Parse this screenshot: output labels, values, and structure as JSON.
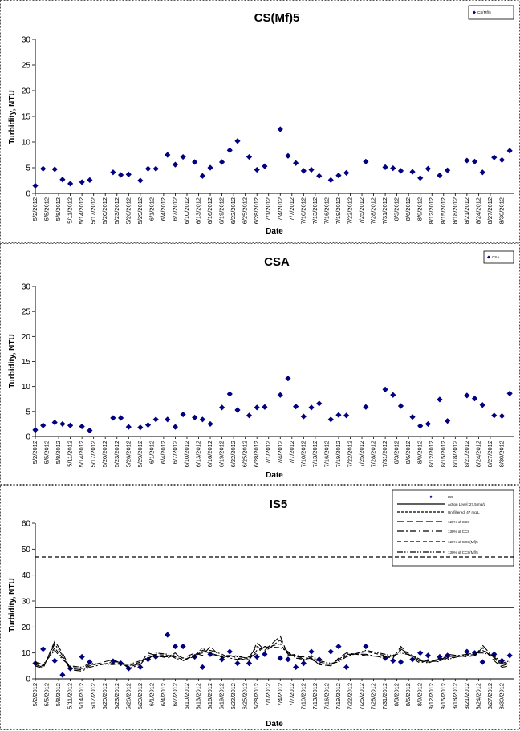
{
  "chart_data": [
    {
      "type": "scatter",
      "title": "CS(Mf)5",
      "xlabel": "Date",
      "ylabel": "Turbidity, NTU",
      "ylim": [
        0,
        30
      ],
      "yticks": [
        0,
        5,
        10,
        15,
        20,
        25,
        30
      ],
      "legend_position": "top-right",
      "legend": [
        "CS(Mf)5"
      ],
      "x_tick_labels": [
        "5/2/2012",
        "5/5/2012",
        "5/8/2012",
        "5/11/2012",
        "5/14/2012",
        "5/17/2012",
        "5/20/2012",
        "5/23/2012",
        "5/26/2012",
        "5/29/2012",
        "6/1/2012",
        "6/4/2012",
        "6/7/2012",
        "6/10/2012",
        "6/13/2012",
        "6/16/2012",
        "6/19/2012",
        "6/22/2012",
        "6/25/2012",
        "6/28/2012",
        "7/1/2012",
        "7/4/2012",
        "7/7/2012",
        "7/10/2012",
        "7/13/2012",
        "7/16/2012",
        "7/19/2012",
        "7/22/2012",
        "7/25/2012",
        "7/28/2012",
        "7/31/2012",
        "8/3/2012",
        "8/6/2012",
        "8/9/2012",
        "8/12/2012",
        "8/15/2012",
        "8/18/2012",
        "8/21/2012",
        "8/24/2012",
        "8/27/2012",
        "8/30/2012"
      ],
      "series": [
        {
          "name": "CS(Mf)5",
          "color": "#000080",
          "marker": "diamond",
          "x": [
            "5/2/2012",
            "5/4/2012",
            "5/7/2012",
            "5/9/2012",
            "5/11/2012",
            "5/14/2012",
            "5/16/2012",
            "5/22/2012",
            "5/24/2012",
            "5/26/2012",
            "5/29/2012",
            "5/31/2012",
            "6/2/2012",
            "6/5/2012",
            "6/7/2012",
            "6/9/2012",
            "6/12/2012",
            "6/14/2012",
            "6/16/2012",
            "6/19/2012",
            "6/21/2012",
            "6/23/2012",
            "6/26/2012",
            "6/28/2012",
            "6/30/2012",
            "7/4/2012",
            "7/6/2012",
            "7/8/2012",
            "7/10/2012",
            "7/12/2012",
            "7/14/2012",
            "7/17/2012",
            "7/19/2012",
            "7/21/2012",
            "7/26/2012",
            "7/31/2012",
            "8/2/2012",
            "8/4/2012",
            "8/7/2012",
            "8/9/2012",
            "8/11/2012",
            "8/14/2012",
            "8/16/2012",
            "8/21/2012",
            "8/23/2012",
            "8/25/2012",
            "8/28/2012",
            "8/30/2012",
            "9/1/2012"
          ],
          "y": [
            1.5,
            4.8,
            4.7,
            2.7,
            1.9,
            2.2,
            2.6,
            4.1,
            3.6,
            3.7,
            2.5,
            4.8,
            4.8,
            7.5,
            5.6,
            7.1,
            6.1,
            3.4,
            5.0,
            6.1,
            8.4,
            10.2,
            7.1,
            4.6,
            5.3,
            12.5,
            7.3,
            5.9,
            4.4,
            4.6,
            3.4,
            2.6,
            3.5,
            4.0,
            6.2,
            5.1,
            4.9,
            4.4,
            4.2,
            3.0,
            4.8,
            3.5,
            4.5,
            6.4,
            6.2,
            4.1,
            7.0,
            6.5,
            8.3
          ]
        }
      ]
    },
    {
      "type": "scatter",
      "title": "CSA",
      "xlabel": "Date",
      "ylabel": "Turbidity, NTU",
      "ylim": [
        0,
        30
      ],
      "yticks": [
        0,
        5,
        10,
        15,
        20,
        25,
        30
      ],
      "legend_position": "top-right",
      "legend": [
        "CSA"
      ],
      "x_tick_labels": [
        "5/2/2012",
        "5/5/2012",
        "5/8/2012",
        "5/11/2012",
        "5/14/2012",
        "5/17/2012",
        "5/20/2012",
        "5/23/2012",
        "5/26/2012",
        "5/29/2012",
        "6/1/2012",
        "6/4/2012",
        "6/7/2012",
        "6/10/2012",
        "6/13/2012",
        "6/16/2012",
        "6/19/2012",
        "6/22/2012",
        "6/25/2012",
        "6/28/2012",
        "7/1/2012",
        "7/4/2012",
        "7/7/2012",
        "7/10/2012",
        "7/13/2012",
        "7/16/2012",
        "7/19/2012",
        "7/22/2012",
        "7/25/2012",
        "7/28/2012",
        "7/31/2012",
        "8/3/2012",
        "8/6/2012",
        "8/9/2012",
        "8/12/2012",
        "8/15/2012",
        "8/18/2012",
        "8/21/2012",
        "8/24/2012",
        "8/27/2012",
        "8/30/2012"
      ],
      "series": [
        {
          "name": "CSA",
          "color": "#000080",
          "marker": "diamond",
          "x": [
            "5/2/2012",
            "5/4/2012",
            "5/7/2012",
            "5/9/2012",
            "5/11/2012",
            "5/14/2012",
            "5/16/2012",
            "5/22/2012",
            "5/24/2012",
            "5/26/2012",
            "5/29/2012",
            "5/31/2012",
            "6/2/2012",
            "6/5/2012",
            "6/7/2012",
            "6/9/2012",
            "6/12/2012",
            "6/14/2012",
            "6/16/2012",
            "6/19/2012",
            "6/21/2012",
            "6/23/2012",
            "6/26/2012",
            "6/28/2012",
            "6/30/2012",
            "7/4/2012",
            "7/6/2012",
            "7/8/2012",
            "7/10/2012",
            "7/12/2012",
            "7/14/2012",
            "7/17/2012",
            "7/19/2012",
            "7/21/2012",
            "7/26/2012",
            "7/31/2012",
            "8/2/2012",
            "8/4/2012",
            "8/7/2012",
            "8/9/2012",
            "8/11/2012",
            "8/14/2012",
            "8/16/2012",
            "8/21/2012",
            "8/23/2012",
            "8/25/2012",
            "8/28/2012",
            "8/30/2012",
            "9/1/2012"
          ],
          "y": [
            1.3,
            2.2,
            2.8,
            2.5,
            2.2,
            2.0,
            1.2,
            3.7,
            3.7,
            1.9,
            1.8,
            2.3,
            3.4,
            3.4,
            1.9,
            4.4,
            3.8,
            3.4,
            2.5,
            5.8,
            8.5,
            5.3,
            4.2,
            5.8,
            5.9,
            8.3,
            11.6,
            6.0,
            4.0,
            5.8,
            6.6,
            3.4,
            4.3,
            4.2,
            5.9,
            9.4,
            8.3,
            6.1,
            3.9,
            2.1,
            2.5,
            7.4,
            3.1,
            8.2,
            7.6,
            6.3,
            4.2,
            4.1,
            8.6
          ]
        }
      ]
    },
    {
      "type": "line",
      "title": "IS5",
      "xlabel": "Date",
      "ylabel": "Turbidity, NTU",
      "ylim": [
        0,
        60
      ],
      "yticks": [
        0,
        10,
        20,
        30,
        40,
        50,
        60
      ],
      "legend_position": "top-right",
      "x_tick_labels": [
        "5/2/2012",
        "5/5/2012",
        "5/8/2012",
        "5/11/2012",
        "5/14/2012",
        "5/17/2012",
        "5/20/2012",
        "5/23/2012",
        "5/26/2012",
        "5/29/2012",
        "6/1/2012",
        "6/4/2012",
        "6/7/2012",
        "6/10/2012",
        "6/13/2012",
        "6/16/2012",
        "6/19/2012",
        "6/22/2012",
        "6/25/2012",
        "6/28/2012",
        "7/1/2012",
        "7/4/2012",
        "7/7/2012",
        "7/10/2012",
        "7/13/2012",
        "7/16/2012",
        "7/19/2012",
        "7/22/2012",
        "7/25/2012",
        "7/28/2012",
        "7/31/2012",
        "8/3/2012",
        "8/6/2012",
        "8/9/2012",
        "8/12/2012",
        "8/15/2012",
        "8/18/2012",
        "8/21/2012",
        "8/24/2012",
        "8/27/2012",
        "8/30/2012"
      ],
      "series": [
        {
          "name": "IS5",
          "color": "#000080",
          "marker": "diamond",
          "x": [
            "5/2/2012",
            "5/4/2012",
            "5/7/2012",
            "5/9/2012",
            "5/11/2012",
            "5/14/2012",
            "5/16/2012",
            "5/22/2012",
            "5/24/2012",
            "5/26/2012",
            "5/29/2012",
            "5/31/2012",
            "6/2/2012",
            "6/5/2012",
            "6/7/2012",
            "6/9/2012",
            "6/12/2012",
            "6/14/2012",
            "6/16/2012",
            "6/19/2012",
            "6/21/2012",
            "6/23/2012",
            "6/26/2012",
            "6/28/2012",
            "6/30/2012",
            "7/4/2012",
            "7/6/2012",
            "7/8/2012",
            "7/10/2012",
            "7/12/2012",
            "7/14/2012",
            "7/17/2012",
            "7/19/2012",
            "7/21/2012",
            "7/26/2012",
            "7/31/2012",
            "8/2/2012",
            "8/4/2012",
            "8/7/2012",
            "8/9/2012",
            "8/11/2012",
            "8/14/2012",
            "8/16/2012",
            "8/21/2012",
            "8/23/2012",
            "8/25/2012",
            "8/28/2012",
            "8/30/2012",
            "9/1/2012"
          ],
          "y": [
            6.0,
            11.5,
            7.0,
            1.5,
            4.0,
            8.5,
            6.5,
            6.8,
            6.0,
            4.0,
            4.5,
            7.5,
            8.5,
            17.0,
            12.5,
            12.5,
            8.5,
            4.5,
            9.5,
            7.5,
            10.5,
            6.0,
            6.0,
            8.5,
            9.5,
            8.0,
            7.5,
            4.5,
            6.0,
            10.5,
            7.5,
            10.5,
            12.5,
            4.5,
            12.5,
            8.0,
            7.0,
            6.5,
            7.5,
            10.0,
            9.0,
            8.5,
            9.0,
            10.5,
            10.0,
            6.5,
            9.5,
            7.0,
            9.0
          ]
        },
        {
          "name": "Action Level: 27.5 mg/L",
          "color": "#000000",
          "style": "solid",
          "constant": 27.5
        },
        {
          "name": "Un-filtered: 47 mg/L",
          "color": "#000000",
          "style": "dashed",
          "constant": 47
        },
        {
          "name": "120% of CCS",
          "color": "#000000",
          "style": "long-dash",
          "y": [
            5.0,
            4.0,
            14.5,
            10.0,
            4.0,
            3.5,
            5.0,
            7.5,
            6.0,
            4.5,
            6.0,
            10.0,
            9.0,
            8.0,
            9.5,
            8.0,
            10.0,
            9.0,
            12.5,
            8.0,
            9.0,
            8.0,
            7.0,
            14.0,
            11.0,
            16.5,
            9.0,
            9.5,
            7.5,
            8.0,
            5.5,
            5.0,
            8.0,
            10.0,
            9.0,
            8.5,
            8.0,
            12.5,
            8.0,
            6.0,
            7.5,
            6.5,
            9.5,
            8.5,
            9.0,
            12.0,
            7.0,
            4.5,
            5.0
          ]
        },
        {
          "name": "130% of CCS",
          "color": "#000000",
          "style": "dash-dot",
          "y": [
            5.5,
            4.5,
            13.5,
            9.0,
            3.5,
            3.0,
            4.5,
            6.5,
            6.5,
            4.0,
            5.5,
            9.0,
            8.5,
            8.5,
            10.0,
            7.0,
            9.5,
            10.0,
            11.0,
            9.5,
            8.0,
            7.5,
            8.5,
            12.5,
            10.5,
            15.0,
            10.0,
            8.5,
            8.5,
            7.5,
            6.0,
            5.5,
            7.5,
            9.5,
            9.5,
            8.0,
            9.0,
            11.5,
            9.0,
            6.5,
            7.0,
            7.5,
            8.5,
            9.5,
            8.5,
            13.0,
            8.0,
            5.0,
            6.0
          ]
        },
        {
          "name": "120% of CCS(Mf)5",
          "color": "#000000",
          "style": "short-dash",
          "y": [
            6.0,
            5.0,
            12.0,
            8.0,
            4.5,
            4.0,
            5.5,
            6.0,
            5.5,
            5.0,
            6.5,
            8.0,
            9.5,
            9.0,
            8.5,
            7.5,
            8.5,
            11.0,
            10.0,
            8.5,
            8.5,
            9.0,
            7.5,
            11.0,
            12.0,
            13.5,
            9.5,
            9.0,
            7.0,
            8.5,
            6.5,
            5.5,
            7.0,
            9.0,
            10.5,
            9.0,
            8.5,
            11.0,
            8.5,
            7.0,
            6.5,
            7.0,
            8.0,
            9.0,
            9.5,
            11.0,
            8.5,
            5.5,
            6.5
          ]
        },
        {
          "name": "130% of CCS(Mf)5",
          "color": "#000000",
          "style": "dash-dot-dot",
          "y": [
            6.5,
            5.5,
            11.0,
            7.5,
            5.0,
            4.5,
            6.0,
            5.5,
            6.0,
            5.5,
            7.0,
            7.5,
            10.0,
            9.5,
            8.0,
            7.0,
            9.0,
            12.0,
            9.0,
            9.0,
            9.0,
            8.5,
            8.0,
            10.0,
            12.5,
            12.0,
            10.5,
            8.0,
            7.5,
            9.0,
            7.0,
            6.0,
            6.5,
            8.5,
            11.0,
            9.5,
            9.0,
            10.0,
            9.0,
            7.5,
            6.0,
            8.0,
            7.5,
            9.5,
            10.0,
            10.0,
            9.0,
            6.0,
            7.0
          ]
        }
      ]
    }
  ],
  "legend_labels": {
    "panel1": "CS(Mf)5",
    "panel2": "CSA",
    "panel3": [
      "IS5",
      "Action Level: 27.5 mg/L",
      "Un-filtered: 47 mg/L",
      "120% of CCS",
      "130% of CCS",
      "120% of CCS(Mf)5",
      "130% of CCS(Mf)5"
    ]
  },
  "colors": {
    "marker": "#000080",
    "line": "#000000",
    "panel_border": "#555555"
  }
}
